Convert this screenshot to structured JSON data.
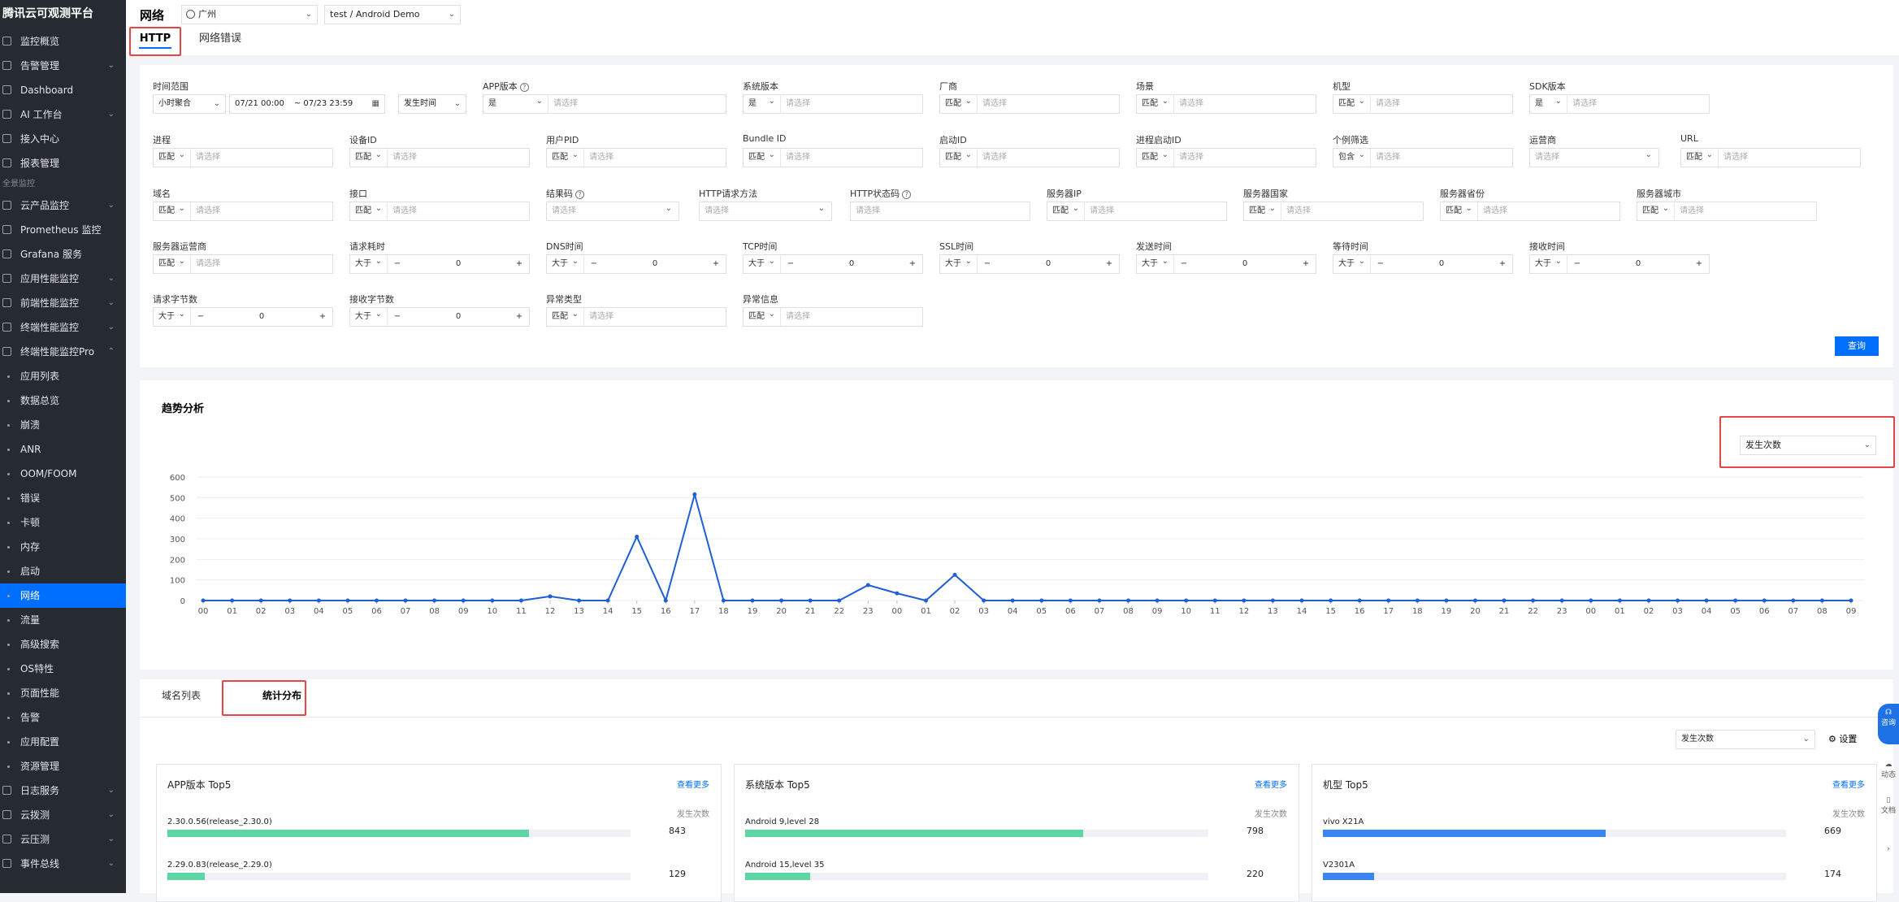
{
  "sidebar": {
    "brand": "腾讯云可观测平台",
    "top_items": [
      {
        "label": "监控概览",
        "chevron": false
      },
      {
        "label": "告警管理",
        "chevron": true
      },
      {
        "label": "Dashboard",
        "chevron": false
      },
      {
        "label": "AI 工作台",
        "chevron": true
      },
      {
        "label": "接入中心",
        "chevron": false
      },
      {
        "label": "报表管理",
        "chevron": false
      }
    ],
    "group_label": "全景监控",
    "group_items": [
      {
        "label": "云产品监控",
        "chevron": true
      },
      {
        "label": "Prometheus 监控",
        "chevron": false
      },
      {
        "label": "Grafana 服务",
        "chevron": false
      },
      {
        "label": "应用性能监控",
        "chevron": true
      },
      {
        "label": "前端性能监控",
        "chevron": true
      },
      {
        "label": "终端性能监控",
        "chevron": true
      },
      {
        "label": "终端性能监控Pro",
        "chevron": true,
        "open": true
      }
    ],
    "sub_items": [
      "应用列表",
      "数据总览",
      "崩溃",
      "ANR",
      "OOM/FOOM",
      "错误",
      "卡顿",
      "内存",
      "启动",
      "网络",
      "流量",
      "高级搜索",
      "OS特性",
      "页面性能",
      "告警",
      "应用配置",
      "资源管理"
    ],
    "active_sub": "网络",
    "tail_items": [
      {
        "label": "日志服务",
        "chevron": true
      },
      {
        "label": "云拨测",
        "chevron": true
      },
      {
        "label": "云压测",
        "chevron": true
      },
      {
        "label": "事件总线",
        "chevron": true
      }
    ]
  },
  "header": {
    "title": "网络",
    "region": "广州",
    "app": "test / Android Demo",
    "tabs": [
      "HTTP",
      "网络错误"
    ]
  },
  "filters": {
    "row1": {
      "time_range_label": "时间范围",
      "time_agg": "小时聚合",
      "time_start": "07/21 00:00",
      "time_end": "~ 07/23 23:59",
      "time_type": "发生时间",
      "app_version_label": "APP版本",
      "app_version_op": "是",
      "placeholder": "请选择",
      "os_version_label": "系统版本",
      "os_op": "是",
      "vendor_label": "厂商",
      "scene_label": "场景",
      "model_label": "机型",
      "sdk_label": "SDK版本",
      "sdk_op": "是",
      "match": "匹配"
    },
    "row2": {
      "process_label": "进程",
      "device_id_label": "设备ID",
      "user_id_label": "用户PID",
      "bundle_label": "Bundle ID",
      "launch_id_label": "启动ID",
      "process_launch_label": "进程启动ID",
      "personal_label": "个例筛选",
      "personal_op": "包含",
      "carrier_label": "运营商",
      "url_label": "URL"
    },
    "row3": {
      "domain_label": "域名",
      "api_label": "接口",
      "result_label": "结果码",
      "method_label": "HTTP请求方法",
      "status_label": "HTTP状态码",
      "server_ip_label": "服务器IP",
      "server_country_label": "服务器国家",
      "server_province_label": "服务器省份",
      "server_city_label": "服务器城市"
    },
    "row4": {
      "server_isp_label": "服务器运营商",
      "req_time_label": "请求耗时",
      "dns_label": "DNS时间",
      "tcp_label": "TCP时间",
      "ssl_label": "SSL时间",
      "send_label": "发送时间",
      "wait_label": "等待时间",
      "recv_label": "接收时间",
      "gt": "大于",
      "zero": "0",
      "minus": "−",
      "plus": "+"
    },
    "row5": {
      "req_bytes_label": "请求字节数",
      "recv_bytes_label": "接收字节数",
      "error_type_label": "异常类型",
      "error_info_label": "异常信息"
    },
    "query_button": "查询"
  },
  "trend": {
    "title": "趋势分析",
    "metric_select": "发生次数"
  },
  "chart_data": {
    "type": "line",
    "yticks": [
      0,
      100,
      200,
      300,
      400,
      500,
      600
    ],
    "ylim": [
      0,
      600
    ],
    "x": [
      "00",
      "01",
      "02",
      "03",
      "04",
      "05",
      "06",
      "07",
      "08",
      "09",
      "10",
      "11",
      "12",
      "13",
      "14",
      "15",
      "16",
      "17",
      "18",
      "19",
      "20",
      "21",
      "22",
      "23",
      "00",
      "01",
      "02",
      "03",
      "04",
      "05",
      "06",
      "07",
      "08",
      "09",
      "10",
      "11",
      "12",
      "13",
      "14",
      "15",
      "16",
      "17",
      "18",
      "19",
      "20",
      "21",
      "22",
      "23",
      "00",
      "01",
      "02",
      "03",
      "04",
      "05",
      "06",
      "07",
      "08",
      "09"
    ],
    "series": [
      {
        "values": [
          0,
          0,
          0,
          0,
          0,
          0,
          0,
          0,
          0,
          0,
          0,
          0,
          20,
          0,
          0,
          310,
          0,
          515,
          0,
          0,
          0,
          0,
          0,
          75,
          35,
          0,
          125,
          0,
          0,
          0,
          0,
          0,
          0,
          0,
          0,
          0,
          0,
          0,
          0,
          0,
          0,
          0,
          0,
          0,
          0,
          0,
          0,
          0,
          0,
          0,
          0,
          0,
          0,
          0,
          0,
          0,
          0,
          0
        ]
      }
    ],
    "color": "#1f5fd6"
  },
  "bottom": {
    "tabs": [
      "域名列表",
      "统计分布"
    ],
    "metric_select": "发生次数",
    "settings": "设置",
    "count_col": "发生次数",
    "more": "查看更多",
    "cards": [
      {
        "title": "APP版本 Top5",
        "color": "#5bd6a4",
        "rows": [
          {
            "label": "2.30.0.56(release_2.30.0)",
            "value": "843",
            "pct": 0.78
          },
          {
            "label": "2.29.0.83(release_2.29.0)",
            "value": "129",
            "pct": 0.08
          }
        ]
      },
      {
        "title": "系统版本 Top5",
        "color": "#5bd6a4",
        "rows": [
          {
            "label": "Android 9,level 28",
            "value": "798",
            "pct": 0.73
          },
          {
            "label": "Android 15,level 35",
            "value": "220",
            "pct": 0.14
          }
        ]
      },
      {
        "title": "机型 Top5",
        "color": "#3a85f0",
        "rows": [
          {
            "label": "vivo X21A",
            "value": "669",
            "pct": 0.61
          },
          {
            "label": "V2301A",
            "value": "174",
            "pct": 0.11
          }
        ]
      }
    ]
  },
  "float": {
    "consult": "咨询",
    "dynamic": "动态",
    "docs": "文档"
  }
}
